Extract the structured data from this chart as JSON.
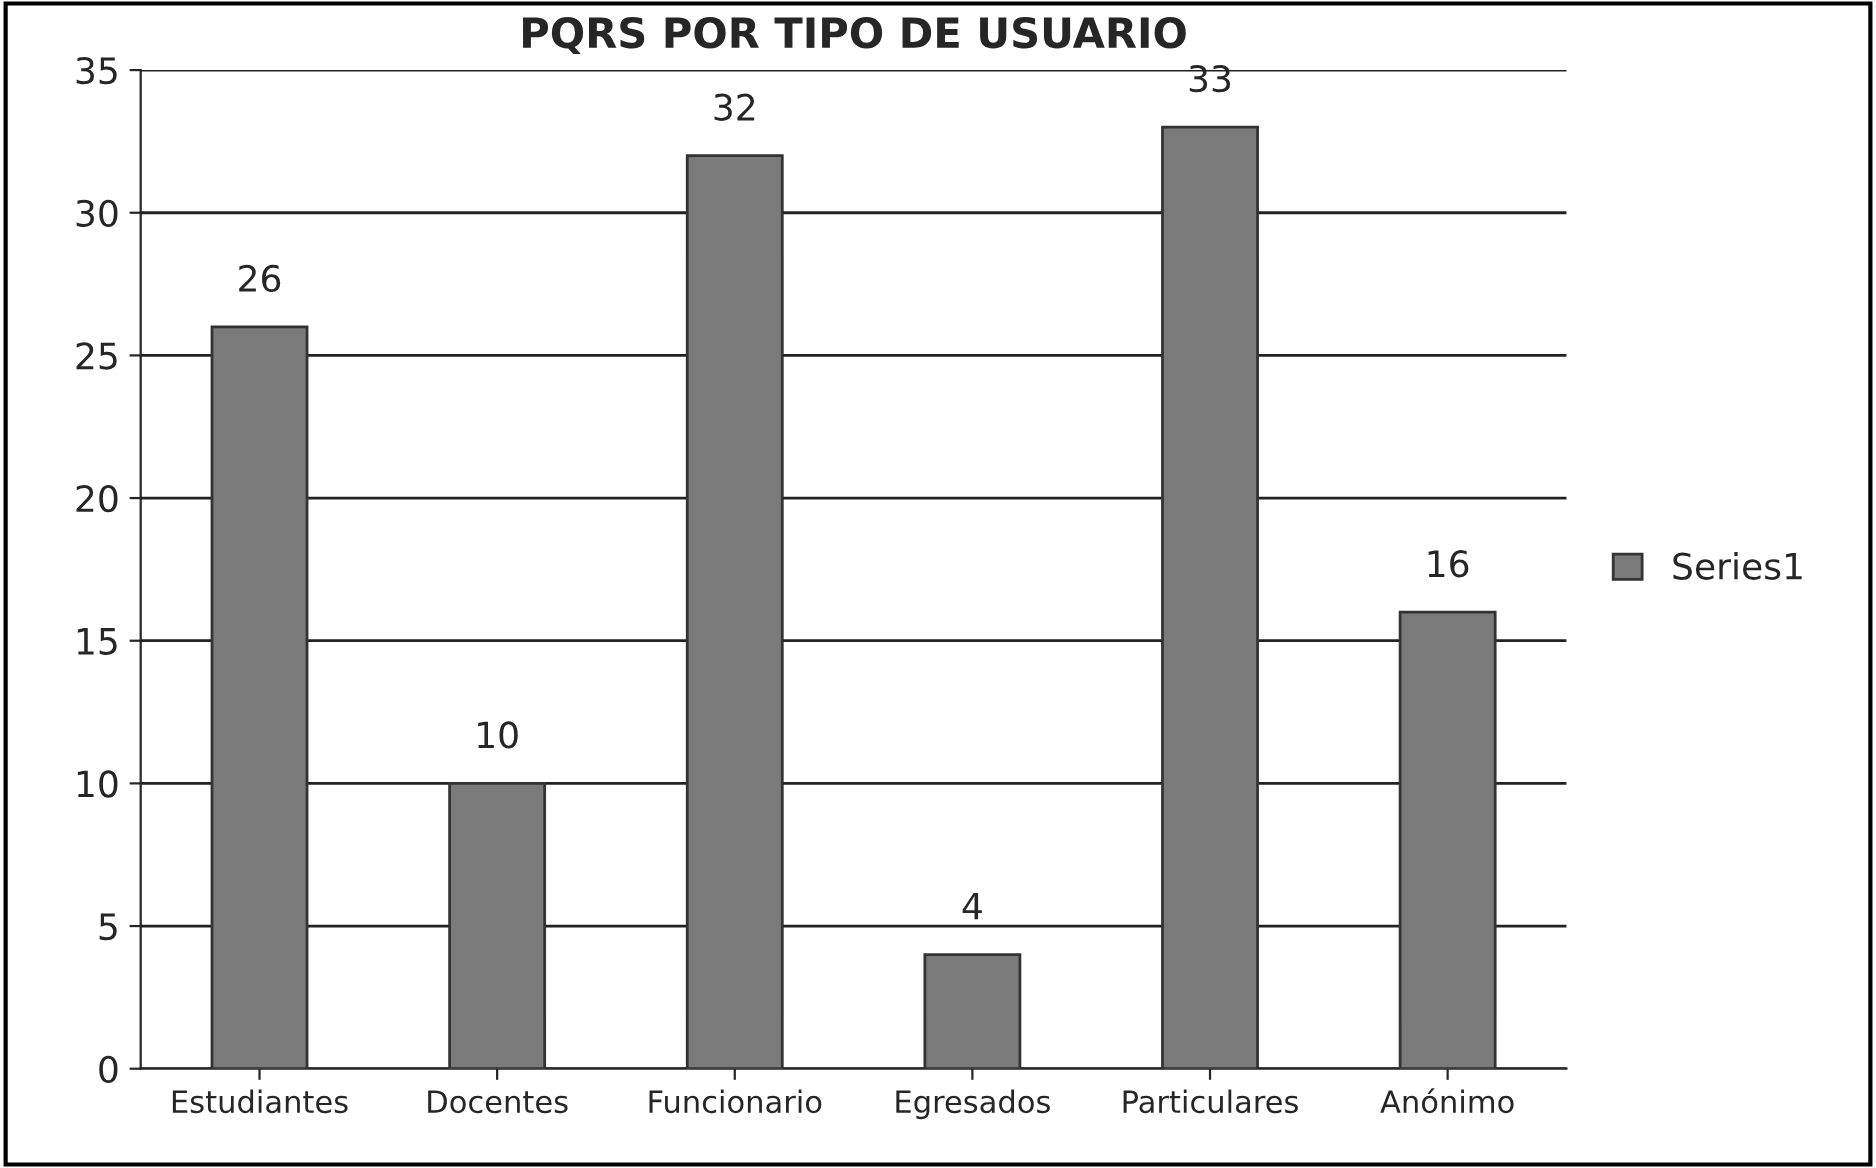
{
  "chart_data": {
    "type": "bar",
    "title": "PQRS POR TIPO DE USUARIO",
    "categories": [
      "Estudiantes",
      "Docentes",
      "Funcionario",
      "Egresados",
      "Particulares",
      "Anónimo"
    ],
    "series": [
      {
        "name": "Series1",
        "color": "#7a7a7a",
        "values": [
          26,
          10,
          32,
          4,
          33,
          16
        ]
      }
    ],
    "ylim": [
      0,
      35
    ],
    "yticks": [
      0,
      5,
      10,
      15,
      20,
      25,
      30,
      35
    ],
    "grid": "y",
    "legend": "right",
    "data_labels": true
  }
}
